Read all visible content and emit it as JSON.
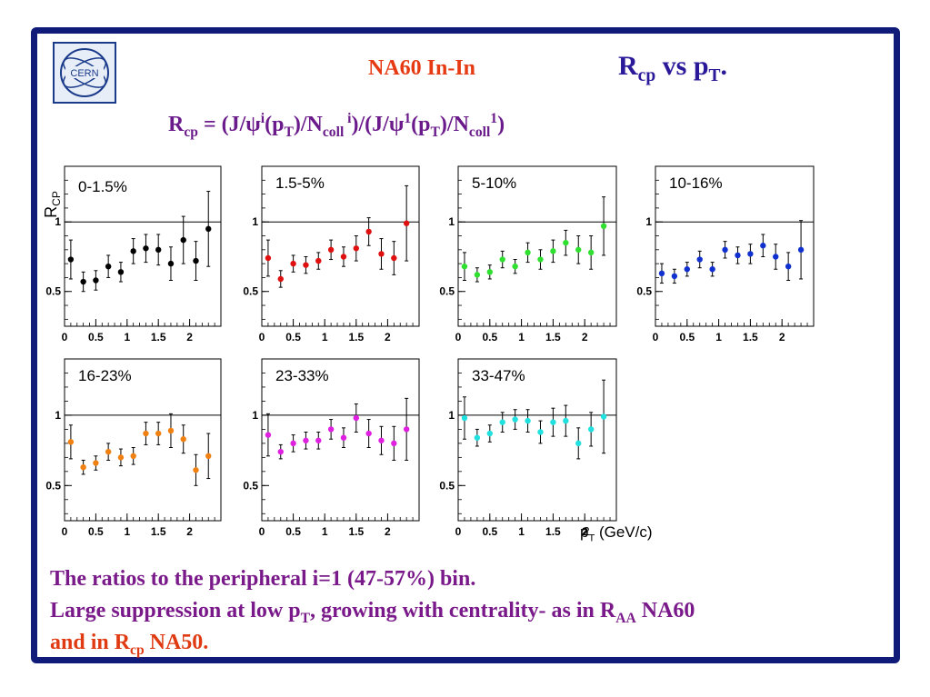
{
  "header": {
    "experiment": "NA60  In-In",
    "title_main": "R",
    "title_sub": "cp",
    "title_rest": "  vs p",
    "title_sub2": "T",
    "title_end": "."
  },
  "logo": {
    "text": "CERN",
    "icon": "cern-logo"
  },
  "formula": {
    "p1": "R",
    "s1": "cp",
    "p2": " = (J/ψ",
    "sup1": "i",
    "p3": "(p",
    "s2": "T",
    "p4": ")/N",
    "s3": "coll",
    "sup2": " i",
    "p5": ")/(J/ψ",
    "sup3": "1",
    "p6": "(p",
    "s4": "T",
    "p7": ")/N",
    "s5": "coll",
    "sup4": "1",
    "p8": ")"
  },
  "axis": {
    "ylabel_main": "R",
    "ylabel_sub": "CP",
    "xlabel_main": "p",
    "xlabel_sub": "T",
    "xlabel_rest": " (GeV/c)",
    "stray_tick": "2"
  },
  "bottom": {
    "line1": "The ratios to the peripheral i=1  (47-57%) bin.",
    "line2_a": "Large suppression at low p",
    "line2_sub": "T",
    "line2_b": ", growing with centrality- as in R",
    "line2_sub2": "AA",
    "line2_c": " NA60",
    "line3_a": "and in R",
    "line3_sub": "cp",
    "line3_b": " NA50."
  },
  "chart_data": [
    {
      "type": "scatter",
      "title": "0-1.5%",
      "color": "#000000",
      "x": [
        0.1,
        0.3,
        0.5,
        0.7,
        0.9,
        1.1,
        1.3,
        1.5,
        1.7,
        1.9,
        2.1,
        2.3
      ],
      "values": [
        0.73,
        0.57,
        0.58,
        0.68,
        0.64,
        0.79,
        0.81,
        0.8,
        0.7,
        0.87,
        0.72,
        0.95
      ],
      "errors": [
        0.14,
        0.07,
        0.07,
        0.08,
        0.07,
        0.09,
        0.1,
        0.11,
        0.12,
        0.17,
        0.14,
        0.27
      ],
      "xlim": [
        0,
        2.5
      ],
      "ylim": [
        0.25,
        1.4
      ],
      "xticks": [
        0,
        0.5,
        1,
        1.5,
        2
      ],
      "yticks": [
        0.5,
        1
      ],
      "reference_line": 1
    },
    {
      "type": "scatter",
      "title": "1.5-5%",
      "color": "#e01010",
      "x": [
        0.1,
        0.3,
        0.5,
        0.7,
        0.9,
        1.1,
        1.3,
        1.5,
        1.7,
        1.9,
        2.1,
        2.3
      ],
      "values": [
        0.74,
        0.59,
        0.7,
        0.69,
        0.72,
        0.8,
        0.75,
        0.81,
        0.93,
        0.77,
        0.74,
        0.99
      ],
      "errors": [
        0.13,
        0.06,
        0.06,
        0.06,
        0.06,
        0.07,
        0.07,
        0.09,
        0.1,
        0.11,
        0.12,
        0.27
      ],
      "xlim": [
        0,
        2.5
      ],
      "ylim": [
        0.25,
        1.4
      ],
      "xticks": [
        0,
        0.5,
        1,
        1.5,
        2
      ],
      "yticks": [
        0.5,
        1
      ],
      "reference_line": 1
    },
    {
      "type": "scatter",
      "title": "5-10%",
      "color": "#30e030",
      "x": [
        0.1,
        0.3,
        0.5,
        0.7,
        0.9,
        1.1,
        1.3,
        1.5,
        1.7,
        1.9,
        2.1,
        2.3
      ],
      "values": [
        0.68,
        0.62,
        0.64,
        0.73,
        0.68,
        0.78,
        0.73,
        0.79,
        0.85,
        0.8,
        0.78,
        0.97
      ],
      "errors": [
        0.1,
        0.05,
        0.05,
        0.06,
        0.05,
        0.07,
        0.07,
        0.08,
        0.09,
        0.1,
        0.12,
        0.21
      ],
      "xlim": [
        0,
        2.5
      ],
      "ylim": [
        0.25,
        1.4
      ],
      "xticks": [
        0,
        0.5,
        1,
        1.5,
        2
      ],
      "yticks": [
        0.5,
        1
      ],
      "reference_line": 1
    },
    {
      "type": "scatter",
      "title": "10-16%",
      "color": "#1030d0",
      "x": [
        0.1,
        0.3,
        0.5,
        0.7,
        0.9,
        1.1,
        1.3,
        1.5,
        1.7,
        1.9,
        2.1,
        2.3
      ],
      "values": [
        0.63,
        0.61,
        0.66,
        0.73,
        0.66,
        0.8,
        0.76,
        0.77,
        0.83,
        0.75,
        0.68,
        0.8
      ],
      "errors": [
        0.07,
        0.05,
        0.05,
        0.06,
        0.05,
        0.06,
        0.06,
        0.07,
        0.08,
        0.09,
        0.1,
        0.21
      ],
      "xlim": [
        0,
        2.5
      ],
      "ylim": [
        0.25,
        1.4
      ],
      "xticks": [
        0,
        0.5,
        1,
        1.5,
        2
      ],
      "yticks": [
        0.5,
        1
      ],
      "reference_line": 1
    },
    {
      "type": "scatter",
      "title": "16-23%",
      "color": "#f08010",
      "x": [
        0.1,
        0.3,
        0.5,
        0.7,
        0.9,
        1.1,
        1.3,
        1.5,
        1.7,
        1.9,
        2.1,
        2.3
      ],
      "values": [
        0.81,
        0.63,
        0.66,
        0.74,
        0.7,
        0.71,
        0.87,
        0.87,
        0.89,
        0.83,
        0.61,
        0.71
      ],
      "errors": [
        0.12,
        0.05,
        0.05,
        0.06,
        0.06,
        0.06,
        0.08,
        0.08,
        0.12,
        0.1,
        0.11,
        0.16
      ],
      "xlim": [
        0,
        2.5
      ],
      "ylim": [
        0.25,
        1.4
      ],
      "xticks": [
        0,
        0.5,
        1,
        1.5,
        2
      ],
      "yticks": [
        0.5,
        1
      ],
      "reference_line": 1
    },
    {
      "type": "scatter",
      "title": "23-33%",
      "color": "#e020e0",
      "x": [
        0.1,
        0.3,
        0.5,
        0.7,
        0.9,
        1.1,
        1.3,
        1.5,
        1.7,
        1.9,
        2.1,
        2.3
      ],
      "values": [
        0.86,
        0.74,
        0.8,
        0.82,
        0.82,
        0.9,
        0.84,
        0.98,
        0.87,
        0.82,
        0.8,
        0.9
      ],
      "errors": [
        0.15,
        0.05,
        0.06,
        0.06,
        0.06,
        0.07,
        0.07,
        0.1,
        0.1,
        0.1,
        0.12,
        0.22
      ],
      "xlim": [
        0,
        2.5
      ],
      "ylim": [
        0.25,
        1.4
      ],
      "xticks": [
        0,
        0.5,
        1,
        1.5,
        2
      ],
      "yticks": [
        0.5,
        1
      ],
      "reference_line": 1
    },
    {
      "type": "scatter",
      "title": "33-47%",
      "color": "#20e0e0",
      "x": [
        0.1,
        0.3,
        0.5,
        0.7,
        0.9,
        1.1,
        1.3,
        1.5,
        1.7,
        1.9,
        2.1,
        2.3
      ],
      "values": [
        0.98,
        0.84,
        0.87,
        0.95,
        0.97,
        0.96,
        0.88,
        0.95,
        0.96,
        0.8,
        0.9,
        0.99
      ],
      "errors": [
        0.15,
        0.06,
        0.06,
        0.07,
        0.07,
        0.08,
        0.08,
        0.1,
        0.11,
        0.11,
        0.12,
        0.26
      ],
      "xlim": [
        0,
        2.5
      ],
      "ylim": [
        0.25,
        1.4
      ],
      "xticks": [
        0,
        0.5,
        1,
        1.5,
        2
      ],
      "yticks": [
        0.5,
        1
      ],
      "reference_line": 1
    }
  ]
}
